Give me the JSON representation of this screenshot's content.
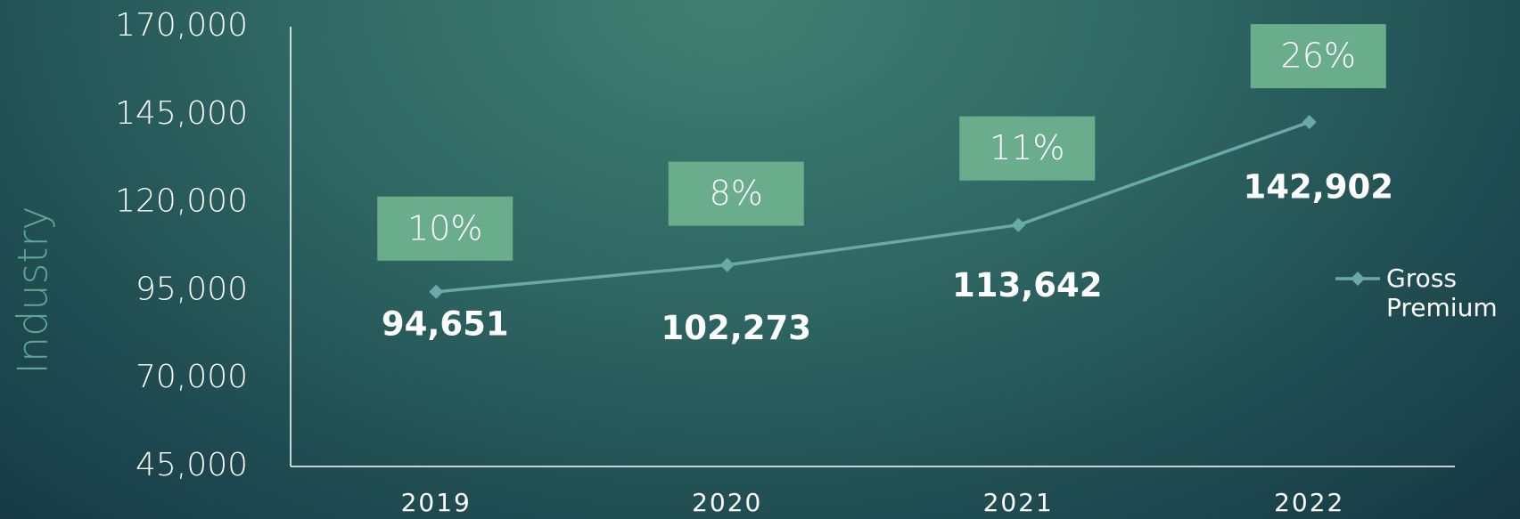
{
  "chart_data": {
    "type": "line",
    "y_axis_label": "Industry",
    "categories": [
      "2019",
      "2020",
      "2021",
      "2022"
    ],
    "series": [
      {
        "name": "Gross Premium",
        "color": "#6aaaa6",
        "values": [
          94651,
          102273,
          113642,
          142902
        ],
        "value_labels": [
          "94,651",
          "102,273",
          "113,642",
          "142,902"
        ]
      }
    ],
    "annotations": [
      "10%",
      "8%",
      "11%",
      "26%"
    ],
    "annotation_color": "#6aad8d",
    "ylim": [
      45000,
      170000
    ],
    "yticks": [
      {
        "value": 45000,
        "label": "45,000"
      },
      {
        "value": 70000,
        "label": "70,000"
      },
      {
        "value": 95000,
        "label": "95,000"
      },
      {
        "value": 120000,
        "label": "120,000"
      },
      {
        "value": 145000,
        "label": "145,000"
      },
      {
        "value": 170000,
        "label": "170,000"
      }
    ],
    "grid": false,
    "legend": "right"
  }
}
